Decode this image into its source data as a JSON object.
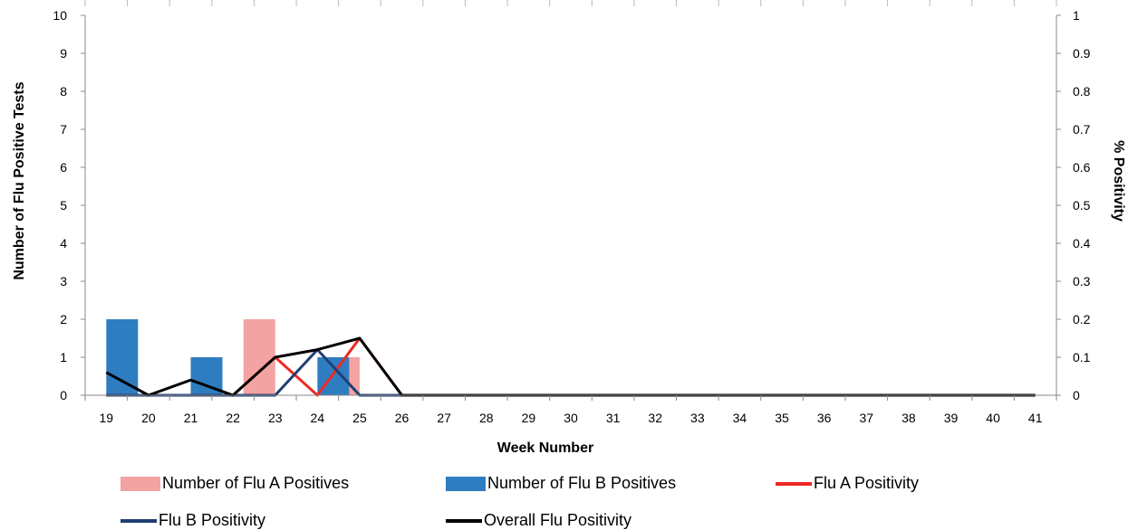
{
  "chart_data": {
    "type": "bar",
    "xlabel": "Week Number",
    "ylabel": "Number of Flu Positive Tests",
    "y2label": "% Positivity",
    "ylim": [
      0,
      10
    ],
    "y2lim": [
      0,
      1
    ],
    "yticks": [
      "0",
      "1",
      "2",
      "3",
      "4",
      "5",
      "6",
      "7",
      "8",
      "9",
      "10"
    ],
    "y2ticks": [
      "0",
      "0.1",
      "0.2",
      "0.3",
      "0.4",
      "0.5",
      "0.6",
      "0.7",
      "0.8",
      "0.9",
      "1"
    ],
    "categories": [
      "19",
      "20",
      "21",
      "22",
      "23",
      "24",
      "25",
      "26",
      "27",
      "28",
      "29",
      "30",
      "31",
      "32",
      "33",
      "34",
      "35",
      "36",
      "37",
      "38",
      "39",
      "40",
      "41"
    ],
    "bar_series": [
      {
        "name": "Number of Flu A Positives",
        "color": "#f4a3a3",
        "values": [
          0,
          0,
          0,
          0,
          2,
          0,
          1,
          0,
          0,
          0,
          0,
          0,
          0,
          0,
          0,
          0,
          0,
          0,
          0,
          0,
          0,
          0,
          0
        ]
      },
      {
        "name": "Number of Flu B Positives",
        "color": "#2f7dc1",
        "values": [
          2,
          0,
          1,
          0,
          0,
          1,
          0,
          0,
          0,
          0,
          0,
          0,
          0,
          0,
          0,
          0,
          0,
          0,
          0,
          0,
          0,
          0,
          0
        ]
      }
    ],
    "line_series": [
      {
        "name": "Flu A Positivity",
        "color": "#ee2a24",
        "values": [
          0,
          0,
          0,
          0,
          0.1,
          0,
          0.15,
          0,
          0,
          0,
          0,
          0,
          0,
          0,
          0,
          0,
          0,
          0,
          0,
          0,
          0,
          0,
          0
        ]
      },
      {
        "name": "Flu B Positivity",
        "color": "#1f3f73",
        "values": [
          0,
          0,
          0,
          0,
          0,
          0.12,
          0,
          0,
          null,
          null,
          null,
          null,
          null,
          null,
          null,
          null,
          null,
          null,
          null,
          null,
          null,
          null,
          null
        ]
      },
      {
        "name": "Overall Flu Positivity",
        "color": "#000000",
        "values": [
          0.06,
          0,
          0.04,
          0,
          0.1,
          0.12,
          0.15,
          0,
          0,
          0,
          0,
          0,
          0,
          0,
          0,
          0,
          0,
          0,
          0,
          0,
          0,
          0,
          0
        ]
      }
    ],
    "legend_position": "bottom"
  },
  "legend": [
    {
      "label": "Number of Flu A Positives",
      "kind": "box",
      "color": "#f4a3a3"
    },
    {
      "label": "Number of Flu B Positives",
      "kind": "box",
      "color": "#2f7dc1"
    },
    {
      "label": "Flu A Positivity",
      "kind": "line",
      "color": "#ee2a24"
    },
    {
      "label": "Flu B Positivity",
      "kind": "line",
      "color": "#1f3f73"
    },
    {
      "label": "Overall Flu Positivity",
      "kind": "line",
      "color": "#000000"
    }
  ]
}
